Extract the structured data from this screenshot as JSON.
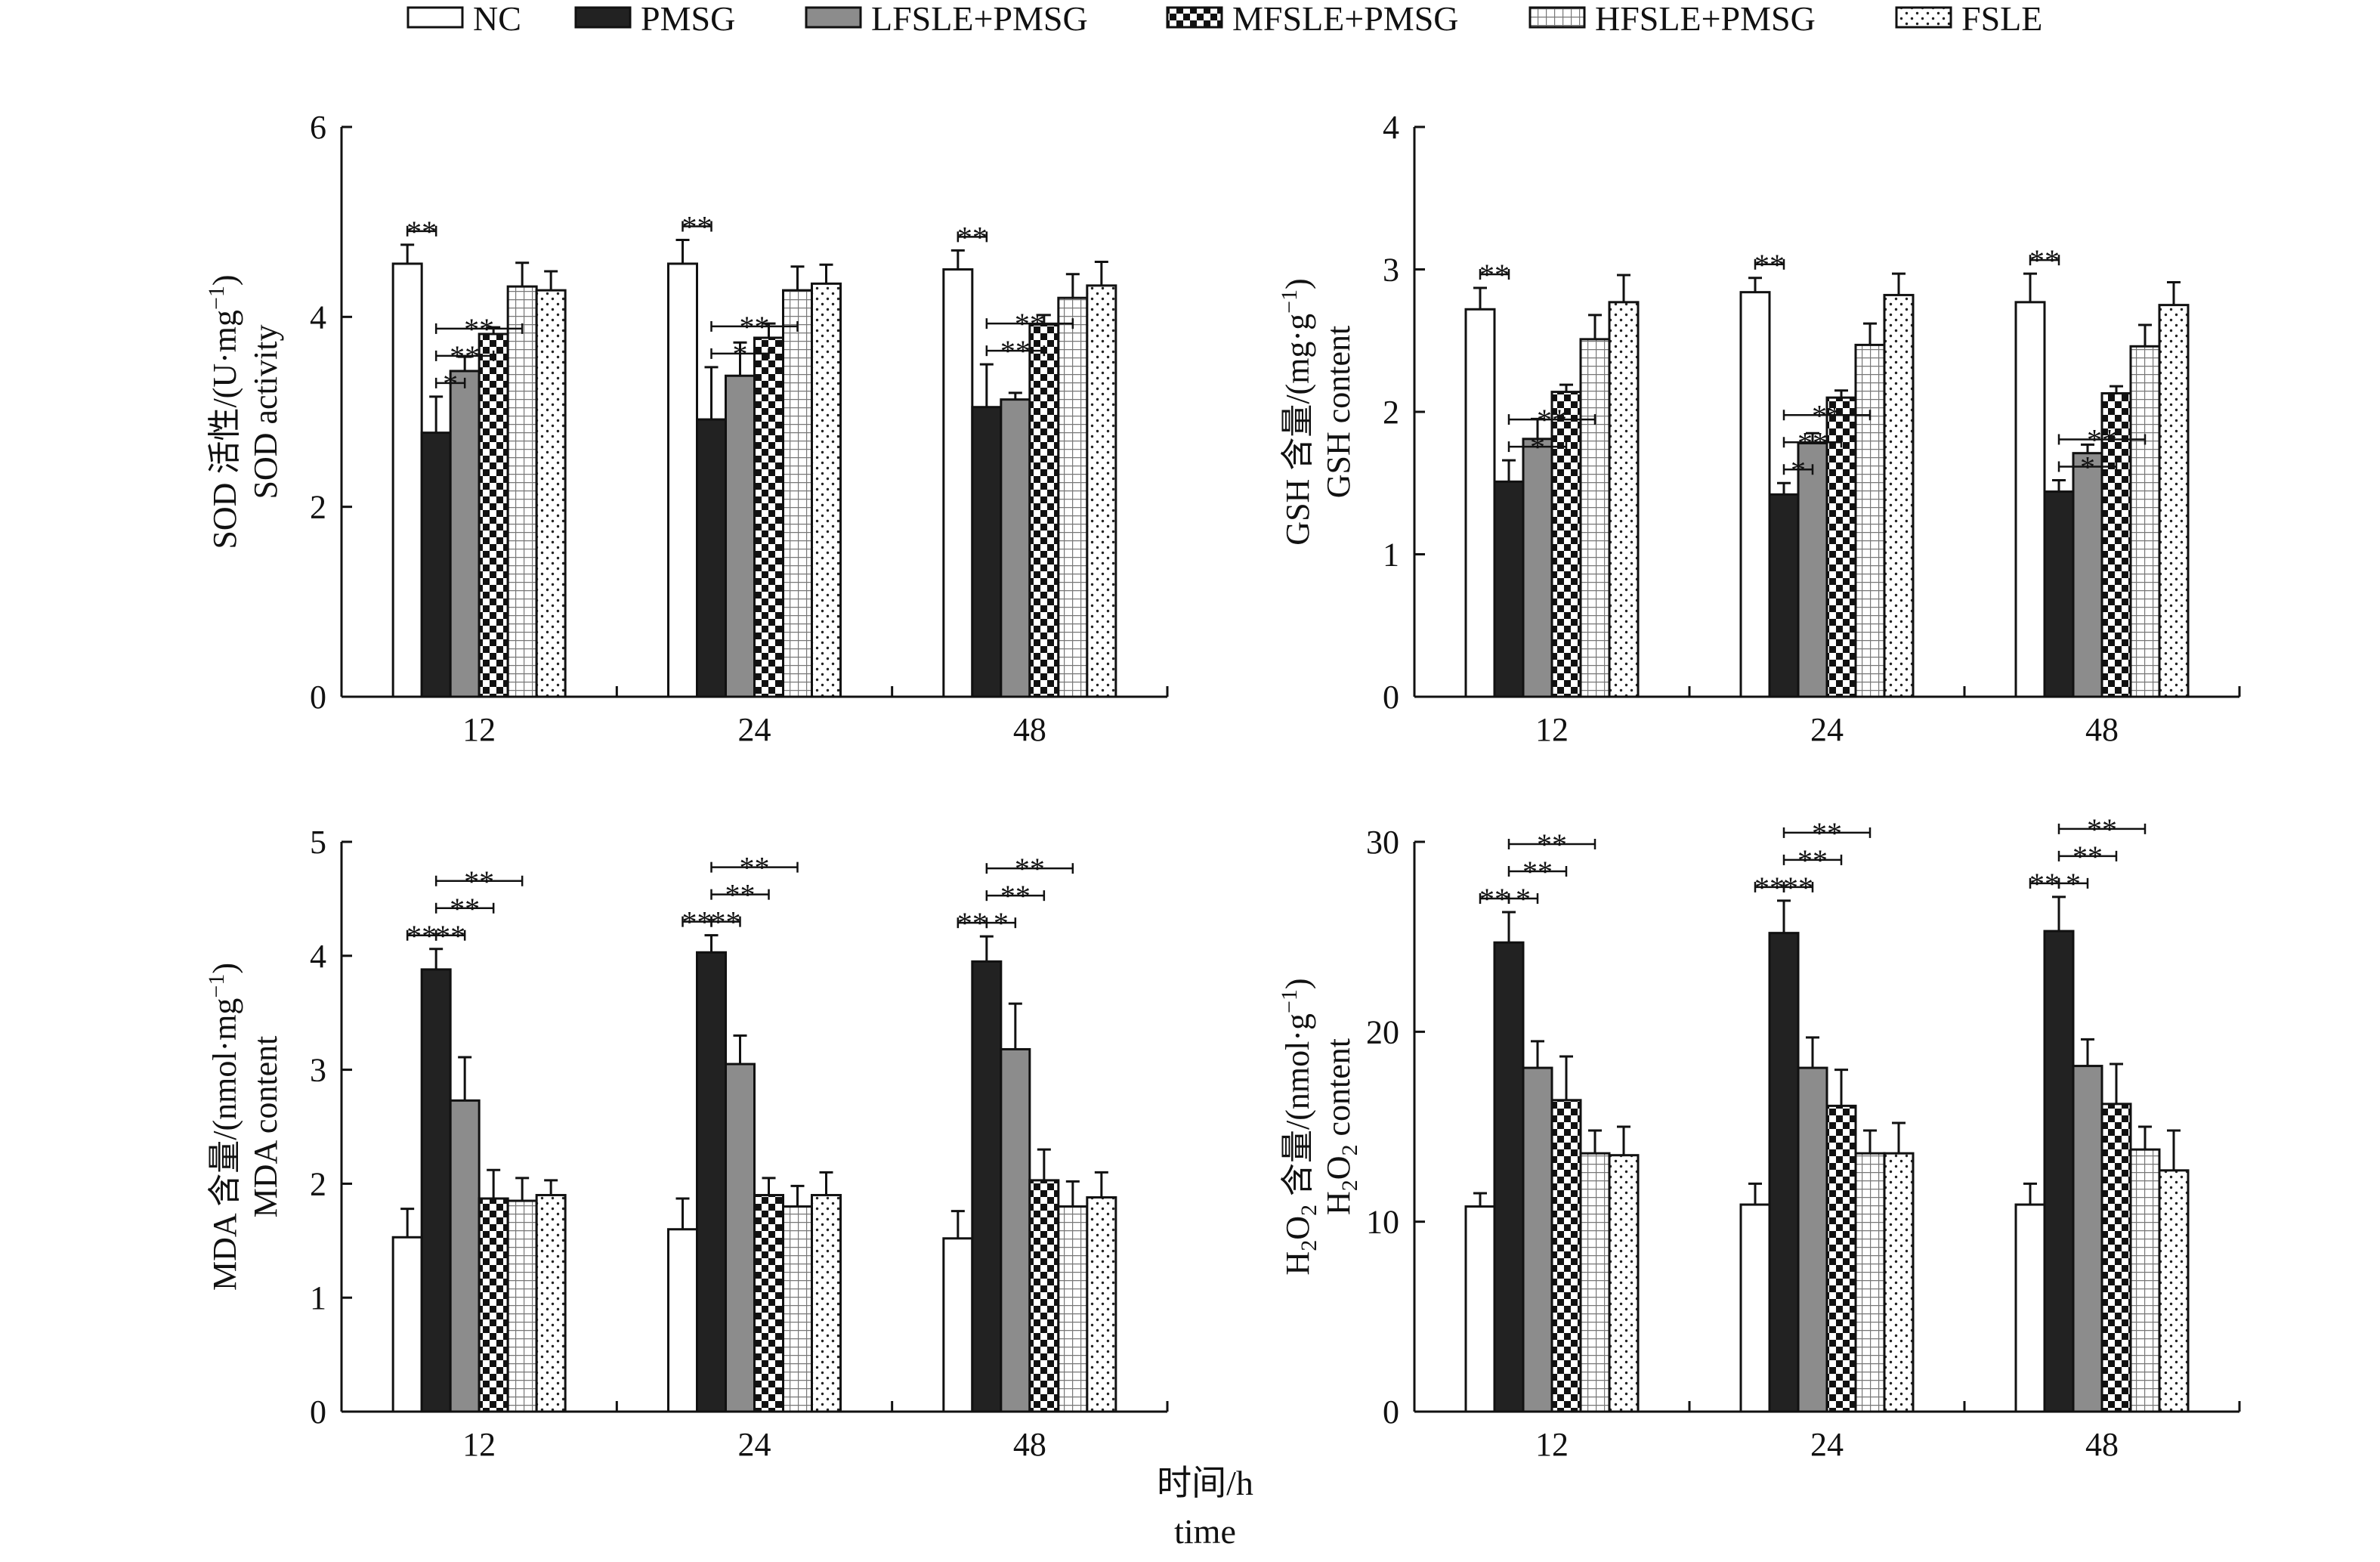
{
  "colors": {
    "ink": "#111111",
    "pmsg": "#222222",
    "lfsle": "#8c8c8c",
    "background": "#ffffff"
  },
  "legend": [
    {
      "key": "nc",
      "label": "NC"
    },
    {
      "key": "pmsg",
      "label": "PMSG"
    },
    {
      "key": "lfsle",
      "label": "LFSLE+PMSG"
    },
    {
      "key": "mfsle",
      "label": "MFSLE+PMSG"
    },
    {
      "key": "hfsle",
      "label": "HFSLE+PMSG"
    },
    {
      "key": "fsle",
      "label": "FSLE"
    }
  ],
  "x_axis_title": {
    "cn": "时间/h",
    "en": "time"
  },
  "chart_data": [
    {
      "id": "sod",
      "type": "bar",
      "ylabel_cn_prefix": "SOD 活性/(U·mg",
      "ylabel_exp": "−1",
      "ylabel_close": ")",
      "ylabel_en": "SOD activity",
      "ylim": [
        0,
        6
      ],
      "yticks": [
        "0",
        "2",
        "4",
        "6"
      ],
      "yticks_values": [
        0,
        2,
        4,
        6
      ],
      "categories": [
        "12",
        "24",
        "48"
      ],
      "series": [
        {
          "name": "NC",
          "values": [
            4.56,
            4.56,
            4.5
          ],
          "errors": [
            0.2,
            0.25,
            0.2
          ]
        },
        {
          "name": "PMSG",
          "values": [
            2.78,
            2.92,
            3.05
          ],
          "errors": [
            0.38,
            0.55,
            0.45
          ]
        },
        {
          "name": "LFSLE+PMSG",
          "values": [
            3.43,
            3.38,
            3.13
          ],
          "errors": [
            0.15,
            0.35,
            0.07
          ]
        },
        {
          "name": "MFSLE+PMSG",
          "values": [
            3.82,
            3.78,
            3.92
          ],
          "errors": [
            0.07,
            0.15,
            0.1
          ]
        },
        {
          "name": "HFSLE+PMSG",
          "values": [
            4.32,
            4.28,
            4.2
          ],
          "errors": [
            0.25,
            0.25,
            0.25
          ]
        },
        {
          "name": "FSLE",
          "values": [
            4.28,
            4.35,
            4.33
          ],
          "errors": [
            0.2,
            0.2,
            0.25
          ]
        }
      ],
      "annotations": [
        {
          "label": "**",
          "group": "12",
          "from": 0,
          "to": 1,
          "level": 0
        },
        {
          "label": "*",
          "group": "12",
          "from": 1,
          "to": 2,
          "level": 0
        },
        {
          "label": "**",
          "group": "12",
          "from": 1,
          "to": 3,
          "level": 1
        },
        {
          "label": "**",
          "group": "12",
          "from": 1,
          "to": 4,
          "level": 2
        },
        {
          "label": "**",
          "group": "24",
          "from": 0,
          "to": 1,
          "level": 0
        },
        {
          "label": "*",
          "group": "24",
          "from": 1,
          "to": 3,
          "level": 0
        },
        {
          "label": "**",
          "group": "24",
          "from": 1,
          "to": 4,
          "level": 1
        },
        {
          "label": "**",
          "group": "48",
          "from": 0,
          "to": 1,
          "level": 0
        },
        {
          "label": "**",
          "group": "48",
          "from": 1,
          "to": 3,
          "level": 0
        },
        {
          "label": "**",
          "group": "48",
          "from": 1,
          "to": 4,
          "level": 1
        }
      ]
    },
    {
      "id": "gsh",
      "type": "bar",
      "ylabel_cn_prefix": "GSH 含量/(mg·g",
      "ylabel_exp": "−1",
      "ylabel_close": ")",
      "ylabel_en": "GSH content",
      "ylim": [
        0,
        4
      ],
      "yticks": [
        "0",
        "1",
        "2",
        "3",
        "4"
      ],
      "yticks_values": [
        0,
        1,
        2,
        3,
        4
      ],
      "categories": [
        "12",
        "24",
        "48"
      ],
      "series": [
        {
          "name": "NC",
          "values": [
            2.72,
            2.84,
            2.77
          ],
          "errors": [
            0.15,
            0.1,
            0.2
          ]
        },
        {
          "name": "PMSG",
          "values": [
            1.51,
            1.42,
            1.44
          ],
          "errors": [
            0.15,
            0.08,
            0.08
          ]
        },
        {
          "name": "LFSLE+PMSG",
          "values": [
            1.81,
            1.78,
            1.71
          ],
          "errors": [
            0.14,
            0.07,
            0.06
          ]
        },
        {
          "name": "MFSLE+PMSG",
          "values": [
            2.14,
            2.1,
            2.13
          ],
          "errors": [
            0.05,
            0.05,
            0.05
          ]
        },
        {
          "name": "HFSLE+PMSG",
          "values": [
            2.51,
            2.47,
            2.46
          ],
          "errors": [
            0.17,
            0.15,
            0.15
          ]
        },
        {
          "name": "FSLE",
          "values": [
            2.77,
            2.82,
            2.75
          ],
          "errors": [
            0.19,
            0.15,
            0.16
          ]
        }
      ],
      "annotations": [
        {
          "label": "**",
          "group": "12",
          "from": 0,
          "to": 1,
          "level": 0
        },
        {
          "label": "*",
          "group": "12",
          "from": 1,
          "to": 3,
          "level": 0
        },
        {
          "label": "**",
          "group": "12",
          "from": 1,
          "to": 4,
          "level": 1
        },
        {
          "label": "**",
          "group": "24",
          "from": 0,
          "to": 1,
          "level": 0
        },
        {
          "label": "*",
          "group": "24",
          "from": 1,
          "to": 2,
          "level": 0
        },
        {
          "label": "**",
          "group": "24",
          "from": 1,
          "to": 3,
          "level": 1
        },
        {
          "label": "**",
          "group": "24",
          "from": 1,
          "to": 4,
          "level": 2
        },
        {
          "label": "**",
          "group": "48",
          "from": 0,
          "to": 1,
          "level": 0
        },
        {
          "label": "*",
          "group": "48",
          "from": 1,
          "to": 3,
          "level": 0
        },
        {
          "label": "**",
          "group": "48",
          "from": 1,
          "to": 4,
          "level": 1
        }
      ]
    },
    {
      "id": "mda",
      "type": "bar",
      "ylabel_cn_prefix": "MDA 含量/(nmol·mg",
      "ylabel_exp": "−1",
      "ylabel_close": ")",
      "ylabel_en": "MDA content",
      "ylim": [
        0,
        5
      ],
      "yticks": [
        "0",
        "1",
        "2",
        "3",
        "4",
        "5"
      ],
      "yticks_values": [
        0,
        1,
        2,
        3,
        4,
        5
      ],
      "categories": [
        "12",
        "24",
        "48"
      ],
      "series": [
        {
          "name": "NC",
          "values": [
            1.53,
            1.6,
            1.52
          ],
          "errors": [
            0.25,
            0.27,
            0.24
          ]
        },
        {
          "name": "PMSG",
          "values": [
            3.88,
            4.03,
            3.95
          ],
          "errors": [
            0.18,
            0.15,
            0.22
          ]
        },
        {
          "name": "LFSLE+PMSG",
          "values": [
            2.73,
            3.05,
            3.18
          ],
          "errors": [
            0.38,
            0.25,
            0.4
          ]
        },
        {
          "name": "MFSLE+PMSG",
          "values": [
            1.87,
            1.9,
            2.03
          ],
          "errors": [
            0.25,
            0.15,
            0.27
          ]
        },
        {
          "name": "HFSLE+PMSG",
          "values": [
            1.85,
            1.8,
            1.8
          ],
          "errors": [
            0.2,
            0.18,
            0.22
          ]
        },
        {
          "name": "FSLE",
          "values": [
            1.9,
            1.9,
            1.88
          ],
          "errors": [
            0.13,
            0.2,
            0.22
          ]
        }
      ],
      "annotations": [
        {
          "label": "**",
          "group": "12",
          "from": 0,
          "to": 1,
          "level": 0
        },
        {
          "label": "**",
          "group": "12",
          "from": 1,
          "to": 2,
          "level": 0
        },
        {
          "label": "**",
          "group": "12",
          "from": 1,
          "to": 3,
          "level": 1
        },
        {
          "label": "**",
          "group": "12",
          "from": 1,
          "to": 4,
          "level": 2
        },
        {
          "label": "**",
          "group": "24",
          "from": 0,
          "to": 1,
          "level": 0
        },
        {
          "label": "**",
          "group": "24",
          "from": 1,
          "to": 2,
          "level": 0
        },
        {
          "label": "**",
          "group": "24",
          "from": 1,
          "to": 3,
          "level": 1
        },
        {
          "label": "**",
          "group": "24",
          "from": 1,
          "to": 4,
          "level": 2
        },
        {
          "label": "**",
          "group": "48",
          "from": 0,
          "to": 1,
          "level": 0
        },
        {
          "label": "*",
          "group": "48",
          "from": 1,
          "to": 2,
          "level": 0
        },
        {
          "label": "**",
          "group": "48",
          "from": 1,
          "to": 3,
          "level": 1
        },
        {
          "label": "**",
          "group": "48",
          "from": 1,
          "to": 4,
          "level": 2
        }
      ]
    },
    {
      "id": "h2o2",
      "type": "bar",
      "ylabel_cn_prefix": "H",
      "ylabel_sub1": "2",
      "ylabel_mid": "O",
      "ylabel_sub2": "2",
      "ylabel_cn_rest": " 含量/(nmol·g",
      "ylabel_exp": "−1",
      "ylabel_close": ")",
      "ylabel_en_prefix": "H",
      "ylabel_en_sub1": "2",
      "ylabel_en_mid": "O",
      "ylabel_en_sub2": "2",
      "ylabel_en_rest": " content",
      "ylim": [
        0,
        30
      ],
      "yticks": [
        "0",
        "10",
        "20",
        "30"
      ],
      "yticks_values": [
        0,
        10,
        20,
        30
      ],
      "categories": [
        "12",
        "24",
        "48"
      ],
      "series": [
        {
          "name": "NC",
          "values": [
            10.8,
            10.9,
            10.9
          ],
          "errors": [
            0.7,
            1.1,
            1.1
          ]
        },
        {
          "name": "PMSG",
          "values": [
            24.7,
            25.2,
            25.3
          ],
          "errors": [
            1.6,
            1.7,
            1.8
          ]
        },
        {
          "name": "LFSLE+PMSG",
          "values": [
            18.1,
            18.1,
            18.2
          ],
          "errors": [
            1.4,
            1.6,
            1.4
          ]
        },
        {
          "name": "MFSLE+PMSG",
          "values": [
            16.4,
            16.1,
            16.2
          ],
          "errors": [
            2.3,
            1.9,
            2.1
          ]
        },
        {
          "name": "HFSLE+PMSG",
          "values": [
            13.6,
            13.6,
            13.8
          ],
          "errors": [
            1.2,
            1.2,
            1.2
          ]
        },
        {
          "name": "FSLE",
          "values": [
            13.5,
            13.6,
            12.7
          ],
          "errors": [
            1.5,
            1.6,
            2.1
          ]
        }
      ],
      "annotations": [
        {
          "label": "**",
          "group": "12",
          "from": 0,
          "to": 1,
          "level": 0
        },
        {
          "label": "*",
          "group": "12",
          "from": 1,
          "to": 2,
          "level": 0
        },
        {
          "label": "**",
          "group": "12",
          "from": 1,
          "to": 3,
          "level": 1
        },
        {
          "label": "**",
          "group": "12",
          "from": 1,
          "to": 4,
          "level": 2
        },
        {
          "label": "**",
          "group": "24",
          "from": 0,
          "to": 1,
          "level": 0
        },
        {
          "label": "**",
          "group": "24",
          "from": 1,
          "to": 2,
          "level": 0
        },
        {
          "label": "**",
          "group": "24",
          "from": 1,
          "to": 3,
          "level": 1
        },
        {
          "label": "**",
          "group": "24",
          "from": 1,
          "to": 4,
          "level": 2
        },
        {
          "label": "**",
          "group": "48",
          "from": 0,
          "to": 1,
          "level": 0
        },
        {
          "label": "*",
          "group": "48",
          "from": 1,
          "to": 2,
          "level": 0
        },
        {
          "label": "**",
          "group": "48",
          "from": 1,
          "to": 3,
          "level": 1
        },
        {
          "label": "**",
          "group": "48",
          "from": 1,
          "to": 4,
          "level": 2
        }
      ]
    }
  ]
}
